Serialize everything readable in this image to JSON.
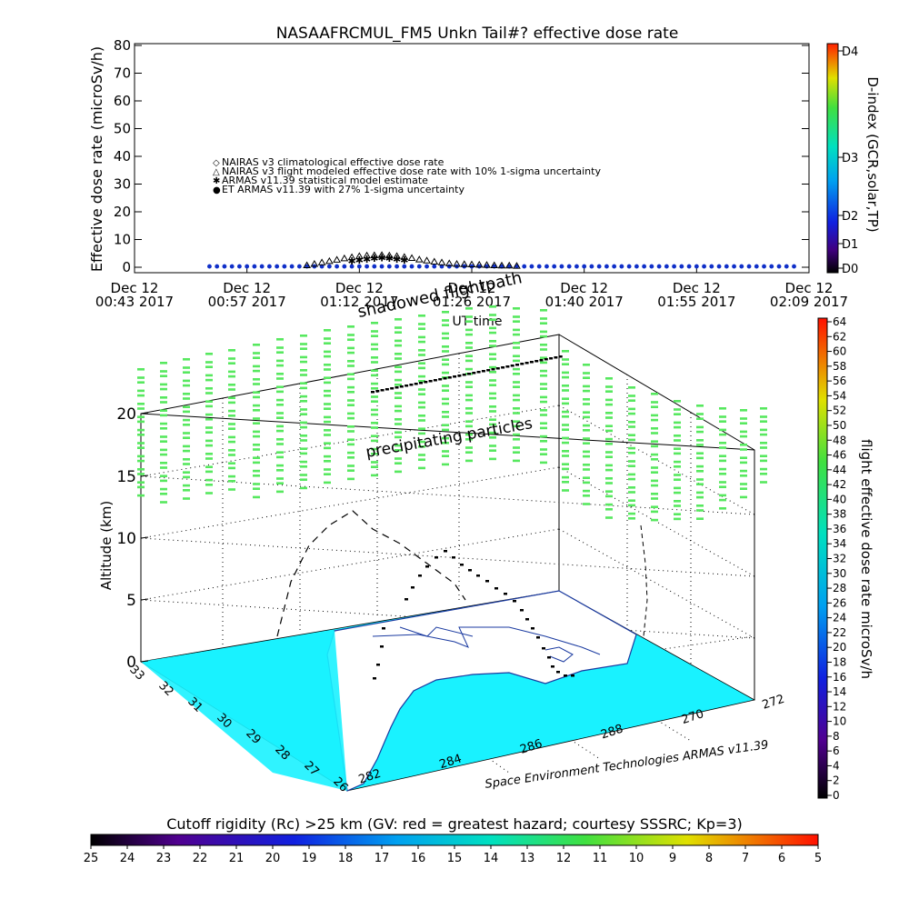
{
  "chart_data": [
    {
      "type": "scatter",
      "title": "NASAAFRCMUL_FM5 Unkn Tail#? effective dose rate",
      "xlabel": "UT time",
      "ylabel": "Effective dose rate (microSv/h)",
      "ylim": [
        0,
        80
      ],
      "yticks": [
        "0",
        "10",
        "20",
        "30",
        "40",
        "50",
        "60",
        "70",
        "80"
      ],
      "xticks": [
        {
          "top": "Dec 12",
          "bottom": "00:43 2017"
        },
        {
          "top": "Dec 12",
          "bottom": "00:57 2017"
        },
        {
          "top": "Dec 12",
          "bottom": "01:12 2017"
        },
        {
          "top": "Dec 12",
          "bottom": "01:26 2017"
        },
        {
          "top": "Dec 12",
          "bottom": "01:40 2017"
        },
        {
          "top": "Dec 12",
          "bottom": "01:55 2017"
        },
        {
          "top": "Dec 12",
          "bottom": "02:09 2017"
        }
      ],
      "legend_placement": "upper-left",
      "legend": [
        {
          "marker": "◇",
          "color": "#c85a00",
          "label": "NAIRAS v3 climatological effective dose rate"
        },
        {
          "marker": "△",
          "color": "#000000",
          "label": "NAIRAS v3 flight modeled effective dose rate with 10% 1-sigma uncertainty"
        },
        {
          "marker": "✱",
          "color": "#22c422",
          "label": "ARMAS v11.39 statistical model estimate"
        },
        {
          "marker": "●",
          "color": "#1030c8",
          "label": "ET ARMAS v11.39 with 27% 1-sigma uncertainty"
        }
      ],
      "series": [
        {
          "name": "ET ARMAS v11.39 with 27% 1-sigma uncertainty",
          "x_minutes": [
            20,
            22,
            24,
            26,
            28,
            30,
            32,
            34,
            36,
            38,
            40,
            42,
            44,
            46,
            48,
            50,
            52,
            54,
            56,
            58,
            60,
            62,
            64,
            66,
            68,
            70,
            72,
            74,
            76,
            78,
            80,
            82,
            84,
            86,
            88,
            90,
            92,
            94,
            96,
            98,
            100,
            102,
            104,
            106,
            108,
            110,
            112,
            114,
            116,
            118,
            120,
            122,
            124,
            126,
            128,
            130,
            132,
            134,
            136,
            138,
            140,
            142,
            144,
            146,
            148,
            150,
            152,
            154,
            156,
            158,
            160,
            162,
            164,
            166,
            168,
            170,
            172,
            174,
            176
          ],
          "values": [
            0.3,
            0.3,
            0.3,
            0.3,
            0.3,
            0.3,
            0.3,
            0.3,
            0.3,
            0.3,
            0.3,
            0.3,
            0.3,
            0.3,
            0.3,
            0.3,
            0.3,
            0.3,
            0.3,
            0.3,
            0.3,
            0.3,
            0.3,
            0.3,
            0.3,
            0.3,
            0.3,
            0.3,
            0.3,
            0.3,
            0.3,
            0.3,
            0.3,
            0.3,
            0.3,
            0.3,
            0.3,
            0.3,
            0.3,
            0.3,
            0.3,
            0.3,
            0.3,
            0.3,
            0.3,
            0.3,
            0.3,
            0.3,
            0.3,
            0.3,
            0.3,
            0.3,
            0.3,
            0.3,
            0.3,
            0.3,
            0.3,
            0.3,
            0.3,
            0.3,
            0.3,
            0.3,
            0.3,
            0.3,
            0.3,
            0.3,
            0.3,
            0.3,
            0.3,
            0.3,
            0.3,
            0.3,
            0.3,
            0.3,
            0.3,
            0.3,
            0.3,
            0.3,
            0.3
          ]
        },
        {
          "name": "NAIRAS v3 flight modeled effective dose rate with 10% 1-sigma uncertainty",
          "x_minutes": [
            46,
            48,
            50,
            52,
            54,
            56,
            58,
            60,
            62,
            64,
            66,
            68,
            70,
            72,
            74,
            76,
            78,
            80,
            82,
            84,
            86,
            88,
            90,
            92,
            94,
            96,
            98,
            100,
            102
          ],
          "values": [
            0.5,
            1.0,
            1.5,
            2.0,
            2.5,
            3.0,
            3.4,
            3.8,
            4.0,
            4.1,
            4.2,
            4.0,
            3.8,
            3.5,
            3.1,
            2.6,
            2.2,
            1.8,
            1.5,
            1.2,
            1.0,
            0.9,
            0.8,
            0.7,
            0.6,
            0.5,
            0.4,
            0.4,
            0.3
          ]
        },
        {
          "name": "ARMAS v11.39 statistical model estimate",
          "x_minutes": [
            58,
            60,
            62,
            64,
            66,
            68,
            70,
            72
          ],
          "values": [
            2.6,
            3.0,
            3.3,
            3.6,
            3.7,
            3.6,
            3.3,
            2.9
          ]
        }
      ]
    },
    {
      "type": "scatter",
      "subtype": "3d-flight-path",
      "zlabel": "Altitude (km)",
      "zticks": [
        "0",
        "5",
        "10",
        "15",
        "20"
      ],
      "lat_ticks": [
        "33",
        "32",
        "31",
        "30",
        "29",
        "28",
        "27",
        "26"
      ],
      "lon_ticks": [
        "282",
        "284",
        "286",
        "288",
        "270",
        "272"
      ],
      "annotations": [
        "shadowed flightpath",
        "precipitating particles"
      ],
      "credit": "Space Environment Technologies ARMAS v11.39",
      "colorbar_label": "flight effective dose rate microSv/h",
      "colorbar_ticks": [
        "0",
        "2",
        "4",
        "6",
        "8",
        "10",
        "12",
        "14",
        "16",
        "18",
        "20",
        "22",
        "24",
        "26",
        "28",
        "30",
        "32",
        "34",
        "36",
        "38",
        "40",
        "42",
        "44",
        "46",
        "48",
        "50",
        "52",
        "54",
        "56",
        "58",
        "60",
        "62",
        "64"
      ]
    }
  ],
  "dindex_colorbar": {
    "label": "D-index (GCR,solar,TP)",
    "ticks": [
      "D4",
      "D3",
      "D2",
      "D1",
      "D0"
    ]
  },
  "cutoff_rigidity": {
    "title": "Cutoff rigidity (Rc) >25 km (GV: red = greatest hazard; courtesy SSSRC; Kp=3)",
    "ticks": [
      "25",
      "24",
      "23",
      "22",
      "21",
      "20",
      "19",
      "18",
      "17",
      "16",
      "15",
      "14",
      "13",
      "12",
      "11",
      "10",
      "9",
      "8",
      "7",
      "6",
      "5"
    ]
  },
  "colors": {
    "sea": "#19f2ff",
    "land": "#ffffff",
    "dots": "#57e85f",
    "path": "#000000"
  }
}
